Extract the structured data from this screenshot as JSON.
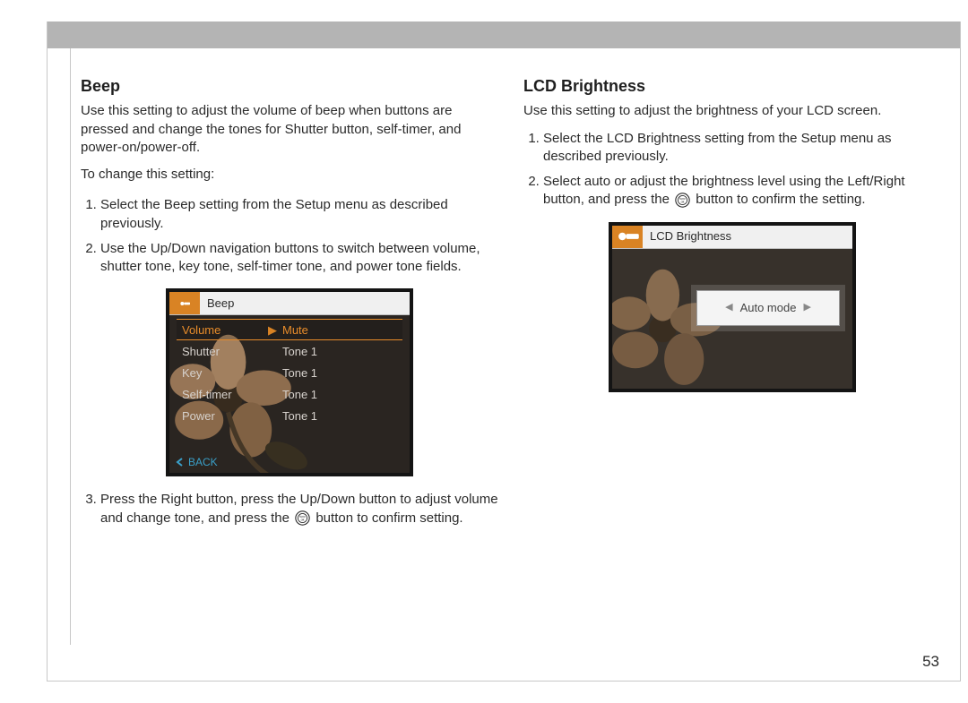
{
  "page_number": "53",
  "left": {
    "heading": "Beep",
    "intro": "Use this setting to adjust the volume of beep when buttons are pressed and change the tones for Shutter button, self-timer, and power-on/power-off.",
    "lead": "To change this setting:",
    "step1": "Select the Beep setting from the Setup menu as described previously.",
    "step2": "Use the Up/Down navigation buttons to switch between volume, shutter tone, key tone, self-timer tone, and power tone fields.",
    "step3a": "Press the Right button, press the Up/Down button to adjust volume and change tone, and press the ",
    "step3b": " button to confirm setting.",
    "lcd": {
      "title": "Beep",
      "rows": [
        {
          "k": "Volume",
          "v": "Mute",
          "sel": true
        },
        {
          "k": "Shutter",
          "v": "Tone 1",
          "sel": false
        },
        {
          "k": "Key",
          "v": "Tone 1",
          "sel": false
        },
        {
          "k": "Self-timer",
          "v": "Tone 1",
          "sel": false
        },
        {
          "k": "Power",
          "v": "Tone 1",
          "sel": false
        }
      ],
      "back": "BACK"
    }
  },
  "right": {
    "heading": "LCD Brightness",
    "intro": "Use this setting to adjust the brightness of your LCD screen.",
    "step1": "Select the LCD Brightness setting from the Setup menu as described previously.",
    "step2a": "Select auto or adjust the brightness level using the Left/Right button, and press the ",
    "step2b": " button to confirm the setting.",
    "lcd": {
      "title": "LCD Brightness",
      "value": "Auto mode"
    }
  },
  "colors": {
    "header_bar": "#b4b4b4",
    "accent_orange": "#d98324",
    "lcd_bg": "#2a2521"
  }
}
